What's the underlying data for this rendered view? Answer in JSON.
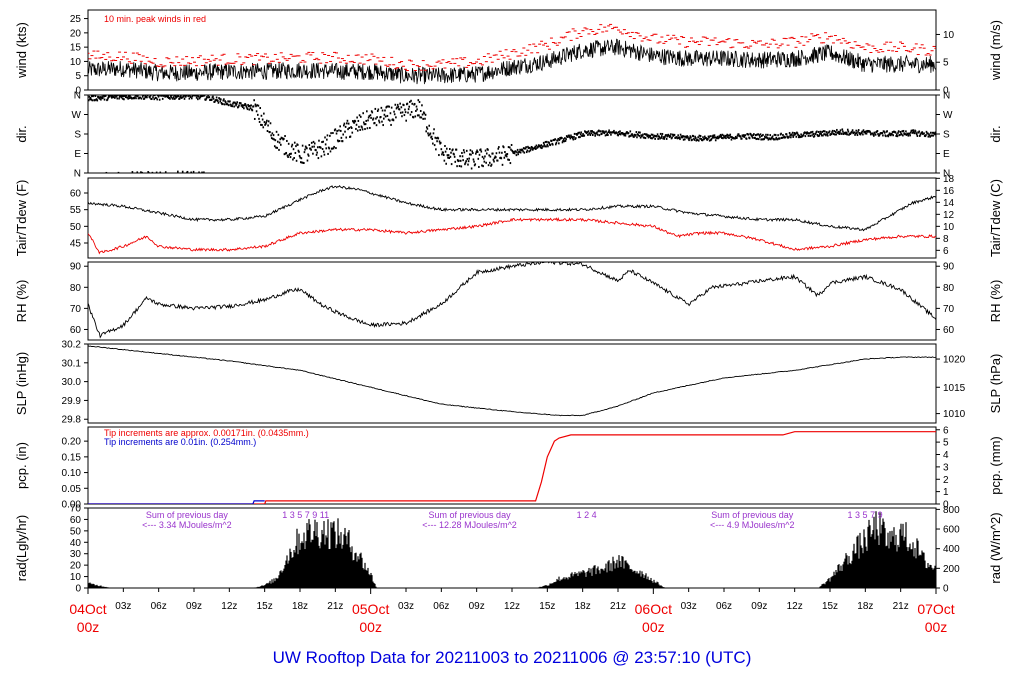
{
  "footer_title": "UW Rooftop Data for 20211003  to  20211006 @ 23:57:10  (UTC)",
  "colors": {
    "trace": "#000000",
    "accent": "#ee0000",
    "blue": "#0000cc",
    "purple": "#9933cc",
    "title": "#0000dd"
  },
  "time_axis": {
    "hour_ticks": [
      "03z",
      "06z",
      "09z",
      "12z",
      "15z",
      "18z",
      "21z"
    ],
    "day_labels": [
      {
        "day": "04Oct",
        "hour": "00z",
        "t": 0
      },
      {
        "day": "05Oct",
        "hour": "00z",
        "t": 24
      },
      {
        "day": "06Oct",
        "hour": "00z",
        "t": 48
      },
      {
        "day": "07Oct",
        "hour": "00z",
        "t": 72
      }
    ],
    "range_hours": [
      0,
      72
    ]
  },
  "chart_data": [
    {
      "type": "line",
      "id": "wind",
      "ylabel_left": "wind (kts)",
      "ylabel_right": "wind (m/s)",
      "ylim": [
        0,
        28
      ],
      "yticks_left": [
        0,
        5,
        10,
        15,
        20,
        25
      ],
      "right_ticks": [
        {
          "label": "0",
          "v": 0
        },
        {
          "label": "5",
          "v": 9.72
        },
        {
          "label": "10",
          "v": 19.44
        }
      ],
      "annotation": "10 min. peak winds in red",
      "series": [
        {
          "values": [
            [
              0,
              7
            ],
            [
              3,
              7.5
            ],
            [
              6,
              6
            ],
            [
              9,
              6
            ],
            [
              12,
              6.5
            ],
            [
              15,
              6.5
            ],
            [
              18,
              7
            ],
            [
              21,
              6.5
            ],
            [
              24,
              6.5
            ],
            [
              27,
              5
            ],
            [
              30,
              5
            ],
            [
              33,
              5.5
            ],
            [
              36,
              8
            ],
            [
              39,
              10
            ],
            [
              42,
              14
            ],
            [
              45,
              15
            ],
            [
              48,
              12
            ],
            [
              51,
              11
            ],
            [
              54,
              11
            ],
            [
              57,
              10.5
            ],
            [
              60,
              11
            ],
            [
              63,
              13
            ],
            [
              66,
              9
            ],
            [
              69,
              9
            ],
            [
              72,
              9
            ]
          ]
        },
        {
          "values": [
            [
              0,
              11
            ],
            [
              3,
              11
            ],
            [
              6,
              9
            ],
            [
              9,
              9.5
            ],
            [
              12,
              10
            ],
            [
              15,
              10
            ],
            [
              18,
              10.5
            ],
            [
              21,
              10.5
            ],
            [
              24,
              10
            ],
            [
              27,
              8
            ],
            [
              30,
              8
            ],
            [
              33,
              9
            ],
            [
              36,
              12
            ],
            [
              39,
              15
            ],
            [
              42,
              20
            ],
            [
              45,
              21
            ],
            [
              48,
              17
            ],
            [
              51,
              16
            ],
            [
              54,
              16
            ],
            [
              57,
              15
            ],
            [
              60,
              16
            ],
            [
              63,
              18
            ],
            [
              66,
              14
            ],
            [
              69,
              14
            ],
            [
              72,
              13
            ]
          ]
        }
      ]
    },
    {
      "type": "scatter",
      "id": "direction",
      "ylabel_left": "dir.",
      "ylabel_right": "dir.",
      "tick_labels": [
        "N",
        "E",
        "S",
        "W",
        "N"
      ],
      "ylim": [
        0,
        360
      ],
      "values": [
        [
          0,
          345
        ],
        [
          2,
          350
        ],
        [
          4,
          355
        ],
        [
          6,
          350
        ],
        [
          8,
          355
        ],
        [
          10,
          350
        ],
        [
          12,
          320
        ],
        [
          14,
          300
        ],
        [
          16,
          150
        ],
        [
          18,
          80
        ],
        [
          20,
          120
        ],
        [
          22,
          200
        ],
        [
          24,
          250
        ],
        [
          26,
          270
        ],
        [
          28,
          300
        ],
        [
          30,
          90
        ],
        [
          32,
          60
        ],
        [
          34,
          70
        ],
        [
          36,
          90
        ],
        [
          38,
          120
        ],
        [
          40,
          150
        ],
        [
          42,
          180
        ],
        [
          44,
          185
        ],
        [
          46,
          180
        ],
        [
          48,
          170
        ],
        [
          50,
          165
        ],
        [
          52,
          160
        ],
        [
          54,
          165
        ],
        [
          56,
          170
        ],
        [
          58,
          165
        ],
        [
          60,
          175
        ],
        [
          62,
          180
        ],
        [
          64,
          190
        ],
        [
          66,
          185
        ],
        [
          68,
          180
        ],
        [
          70,
          185
        ],
        [
          72,
          175
        ]
      ]
    },
    {
      "type": "line",
      "id": "temperature",
      "ylabel_left": "Tair/Tdew (F)",
      "ylabel_right": "Tair/Tdew (C)",
      "ylim": [
        40.5,
        64.5
      ],
      "yticks_left": [
        45,
        50,
        55,
        60
      ],
      "right_ticks": [
        {
          "label": "6",
          "v": 42.8
        },
        {
          "label": "8",
          "v": 46.4
        },
        {
          "label": "10",
          "v": 50
        },
        {
          "label": "12",
          "v": 53.6
        },
        {
          "label": "14",
          "v": 57.2
        },
        {
          "label": "16",
          "v": 60.8
        },
        {
          "label": "18",
          "v": 64.4
        }
      ],
      "series": [
        {
          "values": [
            [
              0,
              57
            ],
            [
              3,
              56
            ],
            [
              6,
              54
            ],
            [
              9,
              52
            ],
            [
              12,
              52
            ],
            [
              15,
              53
            ],
            [
              18,
              58
            ],
            [
              20,
              61
            ],
            [
              21,
              62
            ],
            [
              23,
              61
            ],
            [
              24,
              60
            ],
            [
              27,
              57
            ],
            [
              30,
              55
            ],
            [
              33,
              55
            ],
            [
              36,
              55
            ],
            [
              39,
              55
            ],
            [
              42,
              55
            ],
            [
              45,
              56
            ],
            [
              48,
              56
            ],
            [
              51,
              54
            ],
            [
              54,
              53
            ],
            [
              57,
              52
            ],
            [
              60,
              52
            ],
            [
              63,
              50
            ],
            [
              66,
              49
            ],
            [
              68,
              53
            ],
            [
              70,
              57
            ],
            [
              72,
              59
            ]
          ]
        },
        {
          "values": [
            [
              0,
              48
            ],
            [
              1,
              42
            ],
            [
              3,
              44
            ],
            [
              5,
              47
            ],
            [
              6,
              44
            ],
            [
              9,
              43
            ],
            [
              12,
              43
            ],
            [
              15,
              44
            ],
            [
              18,
              48
            ],
            [
              21,
              49
            ],
            [
              24,
              49
            ],
            [
              27,
              48
            ],
            [
              30,
              49
            ],
            [
              33,
              50
            ],
            [
              36,
              52
            ],
            [
              39,
              52
            ],
            [
              42,
              52
            ],
            [
              45,
              51
            ],
            [
              48,
              50
            ],
            [
              50,
              47
            ],
            [
              52,
              48
            ],
            [
              54,
              48
            ],
            [
              57,
              46
            ],
            [
              60,
              43
            ],
            [
              63,
              44
            ],
            [
              66,
              46
            ],
            [
              69,
              47
            ],
            [
              72,
              47
            ]
          ]
        }
      ]
    },
    {
      "type": "line",
      "id": "rh",
      "ylabel_left": "RH (%)",
      "ylabel_right": "RH (%)",
      "ylim": [
        55,
        92
      ],
      "yticks_left": [
        60,
        70,
        80,
        90
      ],
      "right_ticks": [
        {
          "label": "60",
          "v": 60
        },
        {
          "label": "70",
          "v": 70
        },
        {
          "label": "80",
          "v": 80
        },
        {
          "label": "90",
          "v": 90
        }
      ],
      "values": [
        [
          0,
          72
        ],
        [
          1,
          57
        ],
        [
          3,
          62
        ],
        [
          5,
          75
        ],
        [
          6,
          72
        ],
        [
          9,
          70
        ],
        [
          12,
          71
        ],
        [
          15,
          74
        ],
        [
          17,
          78
        ],
        [
          18,
          79
        ],
        [
          20,
          71
        ],
        [
          22,
          66
        ],
        [
          24,
          62
        ],
        [
          27,
          63
        ],
        [
          30,
          72
        ],
        [
          33,
          87
        ],
        [
          36,
          90
        ],
        [
          39,
          92
        ],
        [
          42,
          91
        ],
        [
          45,
          83
        ],
        [
          46,
          88
        ],
        [
          48,
          82
        ],
        [
          51,
          72
        ],
        [
          53,
          80
        ],
        [
          56,
          82
        ],
        [
          57,
          83
        ],
        [
          60,
          85
        ],
        [
          62,
          76
        ],
        [
          63,
          82
        ],
        [
          66,
          85
        ],
        [
          69,
          79
        ],
        [
          72,
          65
        ]
      ]
    },
    {
      "type": "line",
      "id": "slp",
      "ylabel_left": "SLP (inHg)",
      "ylabel_right": "SLP (hPa)",
      "ylim": [
        29.78,
        30.2
      ],
      "yticks_left": [
        "29.8",
        "29.9",
        "30.0",
        "30.1",
        "30.2"
      ],
      "right_ticks": [
        {
          "label": "1010",
          "v": 29.83
        },
        {
          "label": "1015",
          "v": 29.97
        },
        {
          "label": "1020",
          "v": 30.12
        }
      ],
      "values": [
        [
          0,
          30.19
        ],
        [
          6,
          30.15
        ],
        [
          12,
          30.11
        ],
        [
          18,
          30.06
        ],
        [
          24,
          29.97
        ],
        [
          30,
          29.88
        ],
        [
          36,
          29.84
        ],
        [
          40,
          29.82
        ],
        [
          42,
          29.82
        ],
        [
          45,
          29.87
        ],
        [
          48,
          29.94
        ],
        [
          54,
          30.02
        ],
        [
          60,
          30.06
        ],
        [
          66,
          30.12
        ],
        [
          69,
          30.13
        ],
        [
          72,
          30.13
        ]
      ]
    },
    {
      "type": "line",
      "id": "precipitation",
      "ylabel_left": "pcp. (in)",
      "ylabel_right": "pcp. (mm)",
      "ylim": [
        0,
        0.245
      ],
      "yticks_left": [
        "0.00",
        "0.05",
        "0.10",
        "0.15",
        "0.20"
      ],
      "right_ticks": [
        {
          "label": "0",
          "v": 0
        },
        {
          "label": "1",
          "v": 0.0394
        },
        {
          "label": "2",
          "v": 0.0787
        },
        {
          "label": "3",
          "v": 0.1181
        },
        {
          "label": "4",
          "v": 0.1575
        },
        {
          "label": "5",
          "v": 0.1969
        },
        {
          "label": "6",
          "v": 0.2362
        }
      ],
      "annotations": [
        "Tip increments are approx. 0.00171in. (0.0435mm.)",
        "Tip increments are 0.01in. (0.254mm.)"
      ],
      "series": [
        {
          "values": [
            [
              0,
              0
            ],
            [
              15,
              0
            ],
            [
              15.1,
              0.01
            ],
            [
              38,
              0.01
            ],
            [
              38.5,
              0.07
            ],
            [
              39,
              0.15
            ],
            [
              39.6,
              0.2
            ],
            [
              40,
              0.21
            ],
            [
              41,
              0.22
            ],
            [
              59,
              0.22
            ],
            [
              60,
              0.23
            ],
            [
              72,
              0.23
            ]
          ]
        },
        {
          "values": [
            [
              0,
              0
            ],
            [
              14,
              0
            ],
            [
              14.1,
              0.01
            ],
            [
              15,
              0.01
            ]
          ]
        }
      ]
    },
    {
      "type": "area",
      "id": "radiation",
      "ylabel_left": "rad(Lgly/hr)",
      "ylabel_right": "rad (W/m^2)",
      "ylim": [
        0,
        70
      ],
      "yticks_left": [
        0,
        10,
        20,
        30,
        40,
        50,
        60,
        70
      ],
      "right_ticks": [
        {
          "label": "0",
          "v": 0
        },
        {
          "label": "200",
          "v": 17.2
        },
        {
          "label": "400",
          "v": 34.4
        },
        {
          "label": "600",
          "v": 51.6
        },
        {
          "label": "800",
          "v": 68.8
        }
      ],
      "values": [
        [
          0,
          5
        ],
        [
          2,
          0
        ],
        [
          14,
          0
        ],
        [
          15,
          3
        ],
        [
          16,
          10
        ],
        [
          17,
          35
        ],
        [
          18,
          55
        ],
        [
          19,
          62
        ],
        [
          20,
          62
        ],
        [
          21,
          60
        ],
        [
          22,
          52
        ],
        [
          23,
          35
        ],
        [
          24,
          15
        ],
        [
          24.5,
          0
        ],
        [
          38,
          0
        ],
        [
          39,
          3
        ],
        [
          40,
          10
        ],
        [
          42,
          16
        ],
        [
          44,
          22
        ],
        [
          45,
          30
        ],
        [
          46,
          22
        ],
        [
          47,
          17
        ],
        [
          48,
          8
        ],
        [
          49,
          0
        ],
        [
          62,
          0
        ],
        [
          63,
          10
        ],
        [
          64,
          25
        ],
        [
          65,
          40
        ],
        [
          66,
          52
        ],
        [
          67,
          68
        ],
        [
          68,
          50
        ],
        [
          69,
          60
        ],
        [
          70,
          50
        ],
        [
          71,
          30
        ],
        [
          72,
          20
        ]
      ],
      "annotations": [
        {
          "sum_label": "Sum of previous day",
          "sum_value": "<--- 3.34 MJoules/m^2",
          "t": 5
        },
        {
          "sum_label": "Sum of previous day",
          "sum_value": "<--- 12.28 MJoules/m^2",
          "t": 29
        },
        {
          "sum_label": "Sum of previous day",
          "sum_value": "<--- 4.9 MJoules/m^2",
          "t": 53
        }
      ],
      "hour_marks": [
        {
          "t": 17,
          "labels": "1  3  5  7  9  11"
        },
        {
          "t": 42,
          "labels": "1    2    4"
        },
        {
          "t": 65,
          "labels": "1  3  5  7  9"
        }
      ]
    }
  ]
}
